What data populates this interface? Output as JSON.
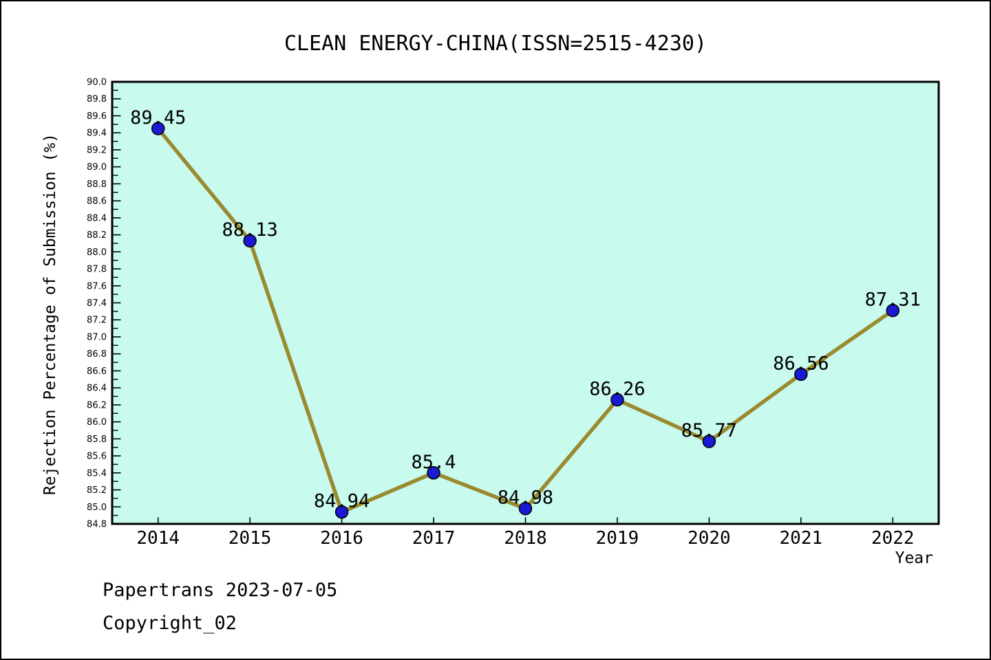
{
  "chart_data": {
    "type": "line",
    "title": "CLEAN ENERGY-CHINA(ISSN=2515-4230)",
    "xlabel": "Year",
    "ylabel": "Rejection Percentage of Submission (%)",
    "x": [
      2014,
      2015,
      2016,
      2017,
      2018,
      2019,
      2020,
      2021,
      2022
    ],
    "values": [
      89.45,
      88.13,
      84.94,
      85.4,
      84.98,
      86.26,
      85.77,
      86.56,
      87.31
    ],
    "point_labels": [
      "89.45",
      "88.13",
      "84.94",
      "85.4",
      "84.98",
      "86.26",
      "85.77",
      "86.56",
      "87.31"
    ],
    "xlim": [
      2013.5,
      2022.5
    ],
    "ylim": [
      84.8,
      90.0
    ],
    "ytick_step": 0.2,
    "ytick_minor_step": 0.1,
    "ytick_labels": [
      "84.8",
      "85.0",
      "85.2",
      "85.4",
      "85.6",
      "85.8",
      "86.0",
      "86.2",
      "86.4",
      "86.6",
      "86.8",
      "87.0",
      "87.2",
      "87.4",
      "87.6",
      "87.8",
      "88.0",
      "88.2",
      "88.4",
      "88.6",
      "88.8",
      "89.0",
      "89.2",
      "89.4",
      "89.6",
      "89.8",
      "90.0"
    ],
    "grid": false,
    "legend_position": "none",
    "styles": {
      "plot_bg": "#C8FAEE",
      "line_color": "#9A8A2F",
      "marker_color": "#1A1AD2",
      "marker_edge": "#000000",
      "axis_color": "#000000",
      "text_color": "#000000",
      "page_border": "#000000"
    }
  },
  "footer": {
    "line1": "Papertrans 2023-07-05",
    "line2": "Copyright_02"
  }
}
